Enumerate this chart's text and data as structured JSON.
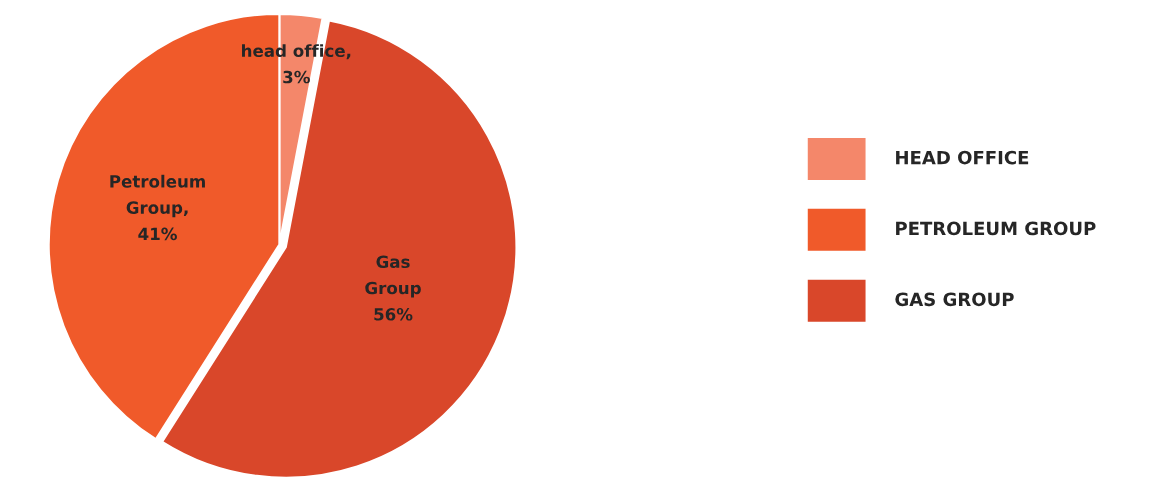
{
  "chart_data": {
    "type": "pie",
    "categories": [
      "HEAD OFFICE",
      "PETROLEUM GROUP",
      "GAS GROUP"
    ],
    "values": [
      3,
      41,
      56
    ],
    "colors": [
      "#f4876a",
      "#f05a2a",
      "#d9472a"
    ],
    "value_labels": [
      "head office,\n3%",
      "Petroleum\nGroup,\n41%",
      "Gas\nGroup\n56%"
    ],
    "legend": "right"
  }
}
